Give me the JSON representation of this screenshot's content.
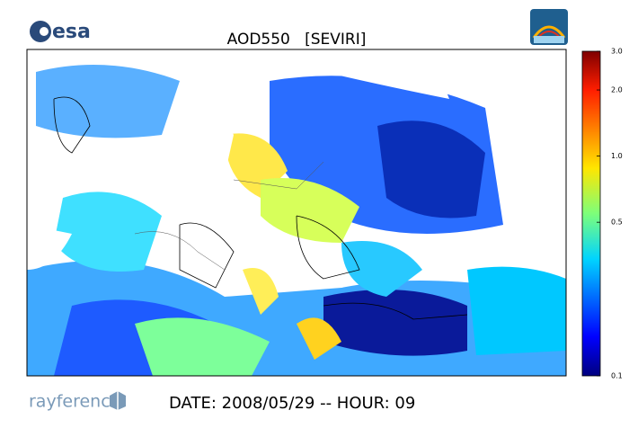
{
  "logo_left": "esa",
  "title": "AOD550   [SEVIRI]",
  "colorbar": {
    "range": [
      0.1,
      3.0
    ],
    "scale": "log",
    "ticks": [
      0.1,
      0.5,
      {
        "value": 1,
        "label": "1.0"
      },
      {
        "value": 2,
        "label": "2.0"
      },
      {
        "value": 3,
        "label": "3.0"
      }
    ]
  },
  "footer_logo": "rayference",
  "footer_text": "DATE: 2008/05/29 -- HOUR: 09"
}
